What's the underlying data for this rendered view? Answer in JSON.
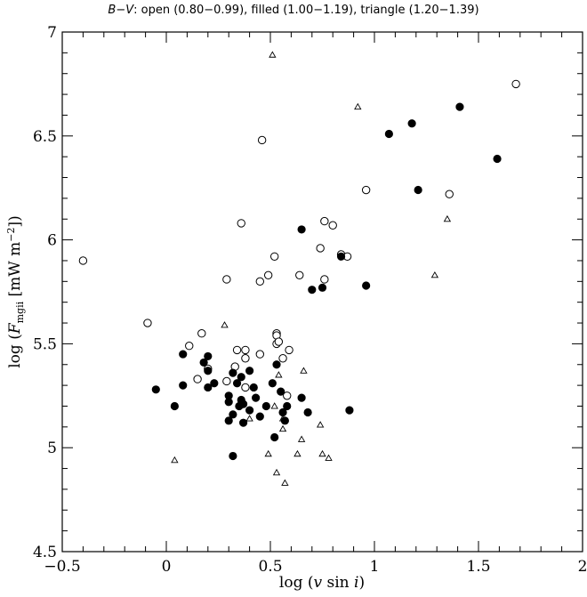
{
  "chart_data": {
    "type": "scatter",
    "title": "B−V: open (0.80−0.99), filled (1.00−1.19), triangle (1.20−1.39)",
    "title_parts": {
      "prefix": "B−V",
      "rest": ": open (0.80−0.99), filled (1.00−1.19), triangle (1.20−1.39)"
    },
    "xlabel": "log (v sin i)",
    "xlabel_parts": {
      "lead": "log (",
      "v": "v",
      "sin": " sin ",
      "i": "i",
      "close": ")"
    },
    "ylabel": "log (F_mgii [mW m^-2])",
    "ylabel_parts": {
      "lead": "log (",
      "F": "F",
      "sub": "mgii",
      "unit": " [mW m",
      "sup": "−2",
      "close": "])"
    },
    "xlim": [
      -0.5,
      2
    ],
    "ylim": [
      4.5,
      7
    ],
    "xticks": [
      {
        "value": -0.5,
        "label": "−0.5"
      },
      {
        "value": 0,
        "label": "0"
      },
      {
        "value": 0.5,
        "label": "0.5"
      },
      {
        "value": 1,
        "label": "1"
      },
      {
        "value": 1.5,
        "label": "1.5"
      },
      {
        "value": 2,
        "label": "2"
      }
    ],
    "yticks": [
      {
        "value": 4.5,
        "label": "4.5"
      },
      {
        "value": 5,
        "label": "5"
      },
      {
        "value": 5.5,
        "label": "5.5"
      },
      {
        "value": 6,
        "label": "6"
      },
      {
        "value": 6.5,
        "label": "6.5"
      },
      {
        "value": 7,
        "label": "7"
      }
    ],
    "grid": false,
    "series": [
      {
        "marker": "open-circle",
        "points": [
          [
            -0.4,
            5.9
          ],
          [
            -0.09,
            5.6
          ],
          [
            0.11,
            5.49
          ],
          [
            0.17,
            5.55
          ],
          [
            0.2,
            5.38
          ],
          [
            0.15,
            5.33
          ],
          [
            0.29,
            5.32
          ],
          [
            0.33,
            5.39
          ],
          [
            0.34,
            5.47
          ],
          [
            0.38,
            5.47
          ],
          [
            0.38,
            5.43
          ],
          [
            0.38,
            5.29
          ],
          [
            0.45,
            5.45
          ],
          [
            0.53,
            5.55
          ],
          [
            0.53,
            5.54
          ],
          [
            0.53,
            5.5
          ],
          [
            0.54,
            5.51
          ],
          [
            0.56,
            5.43
          ],
          [
            0.59,
            5.47
          ],
          [
            0.29,
            5.81
          ],
          [
            0.36,
            6.08
          ],
          [
            0.46,
            6.48
          ],
          [
            0.45,
            5.8
          ],
          [
            0.49,
            5.83
          ],
          [
            0.52,
            5.92
          ],
          [
            0.64,
            5.83
          ],
          [
            0.74,
            5.96
          ],
          [
            0.76,
            6.09
          ],
          [
            0.76,
            5.81
          ],
          [
            0.8,
            6.07
          ],
          [
            0.84,
            5.93
          ],
          [
            0.87,
            5.92
          ],
          [
            0.96,
            6.24
          ],
          [
            1.36,
            6.22
          ],
          [
            1.68,
            6.75
          ],
          [
            0.58,
            5.25
          ]
        ]
      },
      {
        "marker": "filled-circle",
        "points": [
          [
            -0.05,
            5.28
          ],
          [
            0.04,
            5.2
          ],
          [
            0.08,
            5.45
          ],
          [
            0.08,
            5.3
          ],
          [
            0.18,
            5.41
          ],
          [
            0.2,
            5.44
          ],
          [
            0.2,
            5.37
          ],
          [
            0.2,
            5.29
          ],
          [
            0.23,
            5.31
          ],
          [
            0.3,
            5.25
          ],
          [
            0.3,
            5.22
          ],
          [
            0.3,
            5.13
          ],
          [
            0.32,
            5.36
          ],
          [
            0.32,
            5.16
          ],
          [
            0.32,
            4.96
          ],
          [
            0.34,
            5.31
          ],
          [
            0.35,
            5.2
          ],
          [
            0.36,
            5.34
          ],
          [
            0.36,
            5.23
          ],
          [
            0.37,
            5.21
          ],
          [
            0.37,
            5.12
          ],
          [
            0.4,
            5.37
          ],
          [
            0.4,
            5.18
          ],
          [
            0.42,
            5.29
          ],
          [
            0.43,
            5.24
          ],
          [
            0.45,
            5.15
          ],
          [
            0.48,
            5.2
          ],
          [
            0.51,
            5.31
          ],
          [
            0.52,
            5.05
          ],
          [
            0.53,
            5.4
          ],
          [
            0.55,
            5.27
          ],
          [
            0.56,
            5.17
          ],
          [
            0.57,
            5.13
          ],
          [
            0.58,
            5.2
          ],
          [
            0.65,
            5.24
          ],
          [
            0.68,
            5.17
          ],
          [
            0.88,
            5.18
          ],
          [
            0.65,
            6.05
          ],
          [
            0.7,
            5.76
          ],
          [
            0.75,
            5.77
          ],
          [
            0.84,
            5.92
          ],
          [
            0.96,
            5.78
          ],
          [
            1.07,
            6.51
          ],
          [
            1.18,
            6.56
          ],
          [
            1.21,
            6.24
          ],
          [
            1.41,
            6.64
          ],
          [
            1.59,
            6.39
          ]
        ]
      },
      {
        "marker": "triangle",
        "points": [
          [
            0.51,
            6.89
          ],
          [
            0.92,
            6.64
          ],
          [
            1.35,
            6.1
          ],
          [
            1.29,
            5.83
          ],
          [
            0.28,
            5.59
          ],
          [
            0.04,
            4.94
          ],
          [
            0.54,
            5.35
          ],
          [
            0.66,
            5.37
          ],
          [
            0.49,
            4.97
          ],
          [
            0.52,
            5.2
          ],
          [
            0.56,
            5.14
          ],
          [
            0.56,
            5.09
          ],
          [
            0.53,
            4.88
          ],
          [
            0.57,
            4.83
          ],
          [
            0.63,
            4.97
          ],
          [
            0.65,
            5.04
          ],
          [
            0.74,
            5.11
          ],
          [
            0.75,
            4.97
          ],
          [
            0.78,
            4.95
          ],
          [
            0.4,
            5.14
          ]
        ]
      }
    ]
  }
}
